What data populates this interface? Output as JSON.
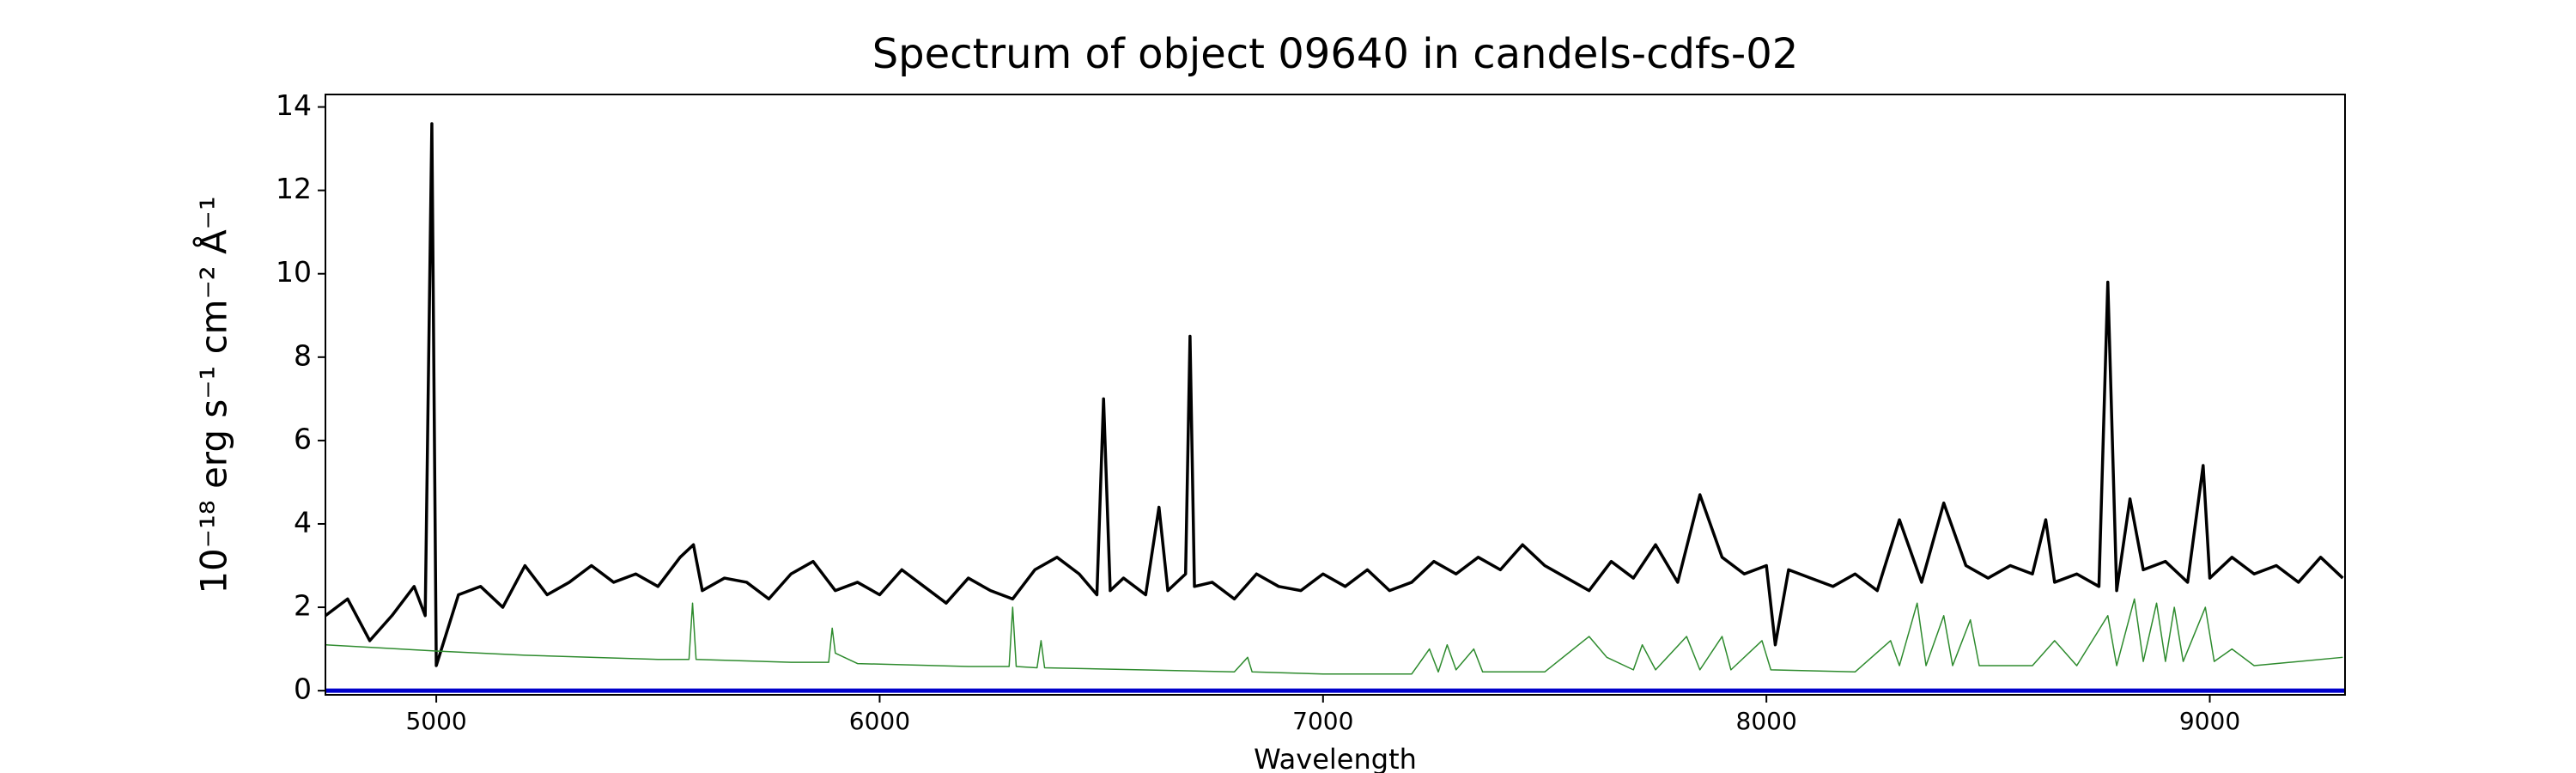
{
  "chart_data": {
    "type": "line",
    "title": "Spectrum of object 09640 in candels-cdfs-02",
    "xlabel": "Wavelength",
    "ylabel": "10⁻¹⁸ erg s⁻¹ cm⁻² Å⁻¹",
    "xlim": [
      4750,
      9305
    ],
    "ylim": [
      -0.1,
      14.3
    ],
    "xticks": [
      5000,
      6000,
      7000,
      8000,
      9000
    ],
    "yticks": [
      0,
      2,
      4,
      6,
      8,
      10,
      12,
      14
    ],
    "grid": false,
    "series": [
      {
        "color": "#000000",
        "x": [
          4750,
          4800,
          4850,
          4900,
          4950,
          4975,
          4990,
          5000,
          5050,
          5100,
          5150,
          5200,
          5250,
          5300,
          5350,
          5400,
          5450,
          5500,
          5550,
          5580,
          5600,
          5650,
          5700,
          5750,
          5800,
          5850,
          5900,
          5950,
          6000,
          6050,
          6100,
          6150,
          6200,
          6250,
          6300,
          6350,
          6400,
          6450,
          6490,
          6505,
          6520,
          6550,
          6600,
          6630,
          6650,
          6690,
          6700,
          6710,
          6750,
          6800,
          6850,
          6900,
          6950,
          7000,
          7050,
          7100,
          7150,
          7200,
          7250,
          7300,
          7350,
          7400,
          7450,
          7500,
          7550,
          7600,
          7650,
          7700,
          7750,
          7800,
          7850,
          7900,
          7950,
          8000,
          8020,
          8050,
          8100,
          8150,
          8200,
          8250,
          8300,
          8350,
          8400,
          8450,
          8500,
          8550,
          8600,
          8630,
          8650,
          8700,
          8750,
          8770,
          8790,
          8820,
          8850,
          8900,
          8950,
          8985,
          9000,
          9050,
          9100,
          9150,
          9200,
          9250,
          9300
        ],
        "values": [
          1.8,
          2.2,
          1.2,
          1.8,
          2.5,
          1.8,
          13.6,
          0.6,
          2.3,
          2.5,
          2.0,
          3.0,
          2.3,
          2.6,
          3.0,
          2.6,
          2.8,
          2.5,
          3.2,
          3.5,
          2.4,
          2.7,
          2.6,
          2.2,
          2.8,
          3.1,
          2.4,
          2.6,
          2.3,
          2.9,
          2.5,
          2.1,
          2.7,
          2.4,
          2.2,
          2.9,
          3.2,
          2.8,
          2.3,
          7.0,
          2.4,
          2.7,
          2.3,
          4.4,
          2.4,
          2.8,
          8.5,
          2.5,
          2.6,
          2.2,
          2.8,
          2.5,
          2.4,
          2.8,
          2.5,
          2.9,
          2.4,
          2.6,
          3.1,
          2.8,
          3.2,
          2.9,
          3.5,
          3.0,
          2.7,
          2.4,
          3.1,
          2.7,
          3.5,
          2.6,
          4.7,
          3.2,
          2.8,
          3.0,
          1.1,
          2.9,
          2.7,
          2.5,
          2.8,
          2.4,
          4.1,
          2.6,
          4.5,
          3.0,
          2.7,
          3.0,
          2.8,
          4.1,
          2.6,
          2.8,
          2.5,
          9.8,
          2.4,
          4.6,
          2.9,
          3.1,
          2.6,
          5.4,
          2.7,
          3.2,
          2.8,
          3.0,
          2.6,
          3.2,
          2.7
        ]
      },
      {
        "color": "#2e8b2e",
        "x": [
          4750,
          5000,
          5200,
          5500,
          5570,
          5578,
          5586,
          5800,
          5885,
          5893,
          5900,
          5950,
          6200,
          6292,
          6300,
          6308,
          6355,
          6364,
          6372,
          6800,
          6830,
          6840,
          7000,
          7200,
          7240,
          7260,
          7280,
          7300,
          7340,
          7360,
          7500,
          7600,
          7640,
          7700,
          7720,
          7750,
          7820,
          7850,
          7900,
          7920,
          7990,
          8010,
          8200,
          8280,
          8300,
          8340,
          8360,
          8400,
          8420,
          8460,
          8480,
          8600,
          8650,
          8700,
          8770,
          8790,
          8830,
          8850,
          8880,
          8900,
          8920,
          8940,
          8990,
          9010,
          9050,
          9100,
          9300
        ],
        "values": [
          1.1,
          0.95,
          0.85,
          0.75,
          0.75,
          2.1,
          0.75,
          0.68,
          0.68,
          1.5,
          0.9,
          0.65,
          0.58,
          0.58,
          2.0,
          0.58,
          0.55,
          1.2,
          0.55,
          0.45,
          0.8,
          0.45,
          0.4,
          0.4,
          1.0,
          0.45,
          1.1,
          0.5,
          1.0,
          0.45,
          0.45,
          1.3,
          0.8,
          0.5,
          1.1,
          0.5,
          1.3,
          0.5,
          1.3,
          0.5,
          1.2,
          0.5,
          0.45,
          1.2,
          0.6,
          2.1,
          0.6,
          1.8,
          0.6,
          1.7,
          0.6,
          0.6,
          1.2,
          0.6,
          1.8,
          0.6,
          2.2,
          0.7,
          2.1,
          0.7,
          2.0,
          0.7,
          2.0,
          0.7,
          1.0,
          0.6,
          0.8
        ]
      },
      {
        "color": "#0000cc",
        "x": [
          4750,
          9305
        ],
        "values": [
          0,
          0
        ]
      }
    ]
  }
}
